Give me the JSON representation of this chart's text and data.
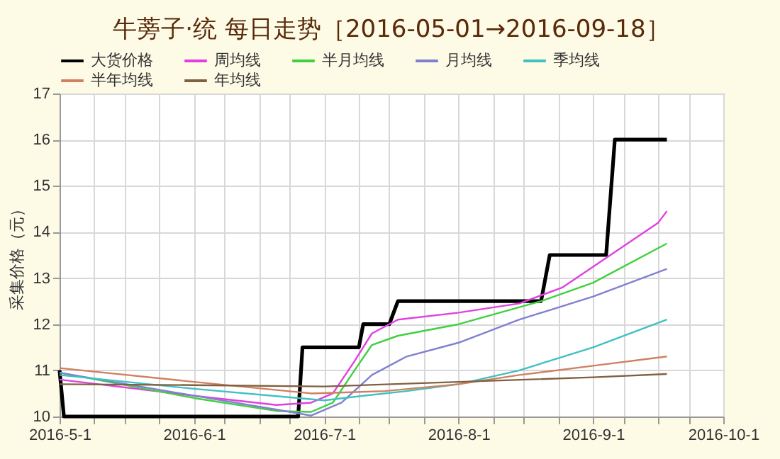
{
  "chart_data": {
    "type": "line",
    "title": "牛蒡子·统 每日走势［2016-05-01→2016-09-18］",
    "ylabel": "采集价格（元）",
    "xlim": [
      "2016-05-01",
      "2016-10-01"
    ],
    "ylim": [
      10,
      17
    ],
    "yticks": [
      10,
      11,
      12,
      13,
      14,
      15,
      16,
      17
    ],
    "xticks": [
      {
        "value": "2016-05-01",
        "label": "2016-5-1"
      },
      {
        "value": "2016-05-09",
        "label": null
      },
      {
        "value": "2016-05-16",
        "label": null
      },
      {
        "value": "2016-05-24",
        "label": null
      },
      {
        "value": "2016-06-01",
        "label": "2016-6-1"
      },
      {
        "value": "2016-06-08",
        "label": null
      },
      {
        "value": "2016-06-16",
        "label": null
      },
      {
        "value": "2016-06-23",
        "label": null
      },
      {
        "value": "2016-07-01",
        "label": "2016-7-1"
      },
      {
        "value": "2016-07-09",
        "label": null
      },
      {
        "value": "2016-07-16",
        "label": null
      },
      {
        "value": "2016-07-24",
        "label": null
      },
      {
        "value": "2016-08-01",
        "label": "2016-8-1"
      },
      {
        "value": "2016-08-09",
        "label": null
      },
      {
        "value": "2016-08-16",
        "label": null
      },
      {
        "value": "2016-08-24",
        "label": null
      },
      {
        "value": "2016-09-01",
        "label": "2016-9-1"
      },
      {
        "value": "2016-09-08",
        "label": null
      },
      {
        "value": "2016-09-16",
        "label": null
      },
      {
        "value": "2016-09-23",
        "label": null
      },
      {
        "value": "2016-10-01",
        "label": "2016-10-1"
      }
    ],
    "grid": true,
    "legend": "top",
    "marker": "none",
    "line_style": "solid",
    "series": [
      {
        "name": "大货价格",
        "color": "#000000",
        "x": [
          "2016-05-01",
          "2016-05-02",
          "2016-06-25",
          "2016-06-26",
          "2016-07-09",
          "2016-07-10",
          "2016-07-16",
          "2016-07-18",
          "2016-08-20",
          "2016-08-22",
          "2016-09-04",
          "2016-09-06",
          "2016-09-18"
        ],
        "values": [
          11,
          10,
          10,
          11.5,
          11.5,
          12,
          12,
          12.5,
          12.5,
          13.5,
          13.5,
          16,
          16
        ]
      },
      {
        "name": "周均线",
        "color": "#e040e0",
        "x": [
          "2016-05-01",
          "2016-06-01",
          "2016-06-20",
          "2016-06-28",
          "2016-07-03",
          "2016-07-08",
          "2016-07-12",
          "2016-07-18",
          "2016-08-01",
          "2016-08-15",
          "2016-08-25",
          "2016-09-05",
          "2016-09-16",
          "2016-09-18"
        ],
        "values": [
          10.8,
          10.45,
          10.25,
          10.3,
          10.5,
          11.2,
          11.8,
          12.1,
          12.25,
          12.45,
          12.8,
          13.5,
          14.2,
          14.45
        ]
      },
      {
        "name": "半月均线",
        "color": "#40d040",
        "x": [
          "2016-05-01",
          "2016-06-01",
          "2016-06-20",
          "2016-06-28",
          "2016-07-03",
          "2016-07-08",
          "2016-07-12",
          "2016-07-18",
          "2016-08-01",
          "2016-08-20",
          "2016-09-01",
          "2016-09-18"
        ],
        "values": [
          10.95,
          10.4,
          10.12,
          10.1,
          10.3,
          11.0,
          11.55,
          11.75,
          12.0,
          12.5,
          12.9,
          13.75
        ]
      },
      {
        "name": "月均线",
        "color": "#8080d0",
        "x": [
          "2016-05-01",
          "2016-06-01",
          "2016-06-20",
          "2016-06-28",
          "2016-07-05",
          "2016-07-12",
          "2016-07-20",
          "2016-08-01",
          "2016-08-15",
          "2016-09-01",
          "2016-09-18"
        ],
        "values": [
          10.95,
          10.45,
          10.15,
          10.02,
          10.3,
          10.9,
          11.3,
          11.6,
          12.1,
          12.6,
          13.2
        ]
      },
      {
        "name": "季均线",
        "color": "#40c0c0",
        "x": [
          "2016-05-01",
          "2016-06-01",
          "2016-06-25",
          "2016-07-01",
          "2016-07-10",
          "2016-07-20",
          "2016-08-01",
          "2016-08-15",
          "2016-09-01",
          "2016-09-18"
        ],
        "values": [
          10.9,
          10.6,
          10.4,
          10.35,
          10.45,
          10.55,
          10.7,
          11.0,
          11.5,
          12.1
        ]
      },
      {
        "name": "半年均线",
        "color": "#d08060",
        "x": [
          "2016-05-01",
          "2016-06-01",
          "2016-06-28",
          "2016-07-15",
          "2016-08-01",
          "2016-08-15",
          "2016-09-01",
          "2016-09-18"
        ],
        "values": [
          11.05,
          10.75,
          10.5,
          10.55,
          10.7,
          10.9,
          11.1,
          11.3
        ]
      },
      {
        "name": "年均线",
        "color": "#806040",
        "x": [
          "2016-05-01",
          "2016-06-01",
          "2016-07-01",
          "2016-08-01",
          "2016-09-01",
          "2016-09-18"
        ],
        "values": [
          10.7,
          10.68,
          10.65,
          10.75,
          10.85,
          10.92
        ]
      }
    ]
  }
}
